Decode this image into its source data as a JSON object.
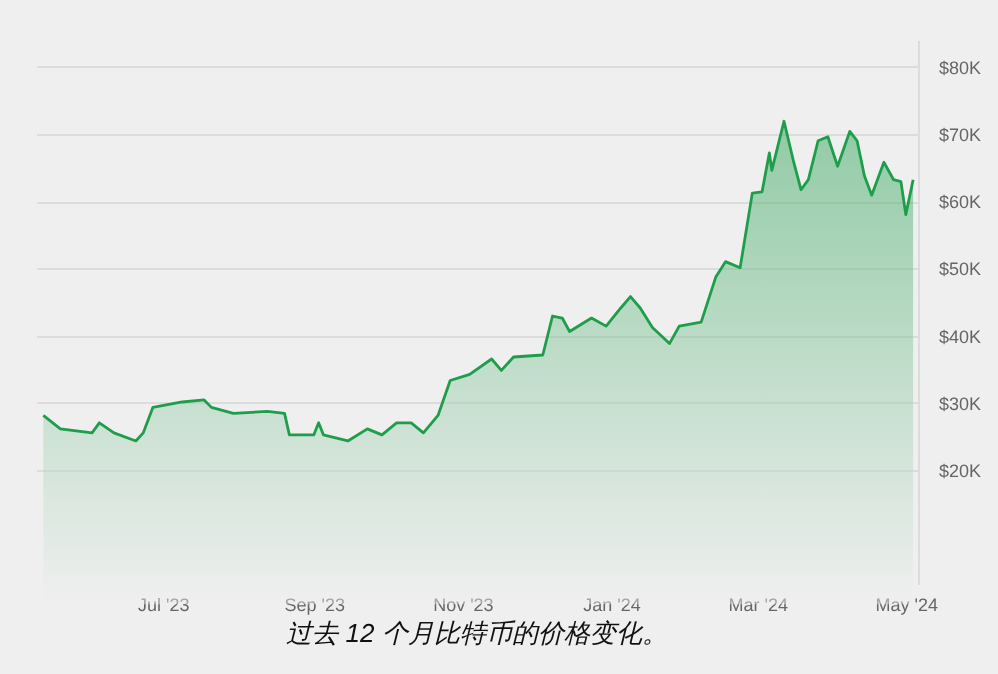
{
  "chart_data": {
    "type": "area",
    "annotations": [
      "过去 12 个月比特币的价格变化。"
    ],
    "x": [
      "2023-05-13",
      "2023-05-20",
      "2023-06-02",
      "2023-06-05",
      "2023-06-11",
      "2023-06-20",
      "2023-06-23",
      "2023-06-27",
      "2023-07-09",
      "2023-07-18",
      "2023-07-21",
      "2023-07-30",
      "2023-08-13",
      "2023-08-20",
      "2023-08-22",
      "2023-09-01",
      "2023-09-03",
      "2023-09-05",
      "2023-09-15",
      "2023-09-23",
      "2023-09-29",
      "2023-10-05",
      "2023-10-11",
      "2023-10-16",
      "2023-10-22",
      "2023-10-27",
      "2023-11-04",
      "2023-11-13",
      "2023-11-17",
      "2023-11-22",
      "2023-12-04",
      "2023-12-08",
      "2023-12-12",
      "2023-12-15",
      "2023-12-24",
      "2023-12-30",
      "2024-01-05",
      "2024-01-09",
      "2024-01-13",
      "2024-01-18",
      "2024-01-25",
      "2024-01-29",
      "2024-02-07",
      "2024-02-13",
      "2024-02-17",
      "2024-02-23",
      "2024-02-28",
      "2024-03-03",
      "2024-03-06",
      "2024-03-07",
      "2024-03-12",
      "2024-03-16",
      "2024-03-19",
      "2024-03-22",
      "2024-03-26",
      "2024-03-30",
      "2024-04-03",
      "2024-04-08",
      "2024-04-11",
      "2024-04-14",
      "2024-04-17",
      "2024-04-22",
      "2024-04-26",
      "2024-04-29",
      "2024-05-01",
      "2024-05-04"
    ],
    "series": [
      {
        "color": "#1e9e4a",
        "values": [
          28100,
          26100,
          25500,
          27000,
          25500,
          24300,
          25500,
          29300,
          30100,
          30400,
          29300,
          28400,
          28700,
          28400,
          25200,
          25200,
          27000,
          25200,
          24300,
          26100,
          25200,
          27000,
          27000,
          25500,
          28100,
          33300,
          34200,
          36500,
          34800,
          36800,
          37100,
          42900,
          42600,
          40600,
          42600,
          41400,
          44100,
          45800,
          44100,
          41200,
          38800,
          41400,
          42000,
          48700,
          51000,
          50100,
          61200,
          61400,
          67200,
          64600,
          71900,
          65800,
          61700,
          63200,
          69000,
          69600,
          65200,
          70400,
          69000,
          63800,
          60900,
          65800,
          63200,
          62900,
          58000,
          63200
        ]
      }
    ],
    "xlim": [
      "2023-05-10",
      "2024-05-06"
    ],
    "xticks": [
      {
        "value": "2023-07-01",
        "label": "Jul '23"
      },
      {
        "value": "2023-09-01",
        "label": "Sep '23"
      },
      {
        "value": "2023-11-01",
        "label": "Nov '23"
      },
      {
        "value": "2024-01-01",
        "label": "Jan '24"
      },
      {
        "value": "2024-03-01",
        "label": "Mar '24"
      },
      {
        "value": "2024-05-01",
        "label": "May '24"
      }
    ],
    "ylim": [
      3000,
      84000
    ],
    "yticks": [
      {
        "value": 20000,
        "label": "$20K"
      },
      {
        "value": 30000,
        "label": "$30K"
      },
      {
        "value": 40000,
        "label": "$40K"
      },
      {
        "value": 50000,
        "label": "$50K"
      },
      {
        "value": 60000,
        "label": "$60K"
      },
      {
        "value": 70000,
        "label": "$70K"
      },
      {
        "value": 80000,
        "label": "$80K"
      }
    ],
    "grid": "y"
  }
}
